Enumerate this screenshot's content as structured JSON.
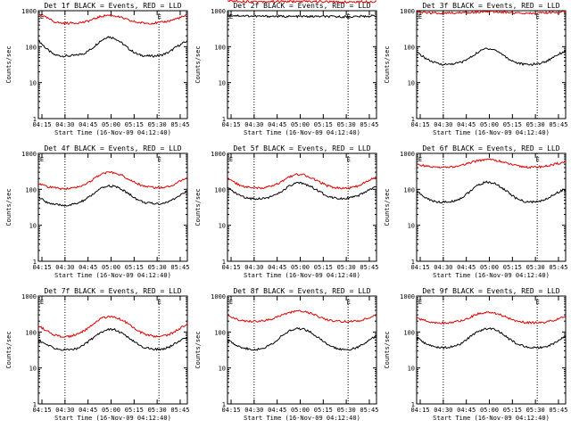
{
  "figure": {
    "xlabel": "Start Time (16-Nov-09 04:12:40)",
    "ylabel": "Counts/sec",
    "x_ticks": [
      "04:15",
      "04:30",
      "04:45",
      "05:00",
      "05:15",
      "05:30",
      "05:45"
    ],
    "y_ticks": [
      "1",
      "10",
      "100",
      "1000"
    ],
    "e_marker": "E",
    "colors": {
      "events": "#000000",
      "lld": "#e00000"
    }
  },
  "chart_data": [
    {
      "type": "line",
      "title": "Det 1f BLACK = Events, RED = LLD",
      "ylabel": "Counts/sec",
      "xlabel": "Start Time (16-Nov-09 04:12:40)",
      "y_scale": "log",
      "ylim": [
        1,
        1000
      ],
      "x_minutes": [
        0,
        5,
        10,
        15,
        20,
        25,
        30,
        35,
        40,
        45,
        50,
        55,
        60,
        65,
        70,
        75,
        80,
        85,
        90,
        95,
        97
      ],
      "series": [
        {
          "name": "Events",
          "color": "#000000",
          "values": [
            150,
            90,
            60,
            55,
            55,
            58,
            65,
            90,
            140,
            190,
            170,
            120,
            80,
            60,
            55,
            55,
            58,
            70,
            100,
            130,
            145
          ]
        },
        {
          "name": "LLD",
          "color": "#e00000",
          "values": [
            800,
            650,
            500,
            450,
            450,
            460,
            480,
            560,
            680,
            750,
            720,
            620,
            520,
            470,
            450,
            450,
            470,
            520,
            600,
            700,
            760
          ]
        }
      ]
    },
    {
      "type": "line",
      "title": "Det 2f BLACK = Events, RED = LLD",
      "ylabel": "Counts/sec",
      "xlabel": "Start Time (16-Nov-09 04:12:40)",
      "y_scale": "log",
      "ylim": [
        1,
        1000
      ],
      "x_minutes": [
        0,
        10,
        20,
        30,
        40,
        50,
        60,
        70,
        80,
        90,
        97
      ],
      "series": [
        {
          "name": "Events",
          "color": "#000000",
          "values": [
            750,
            720,
            700,
            700,
            690,
            690,
            690,
            680,
            680,
            700,
            720
          ]
        },
        {
          "name": "LLD",
          "color": "#e00000",
          "values": [
            1900,
            1800,
            1800,
            1800,
            1800,
            1800,
            1800,
            1750,
            1750,
            1800,
            1800
          ]
        }
      ]
    },
    {
      "type": "line",
      "title": "Det 3f BLACK = Events, RED = LLD",
      "ylabel": "Counts/sec",
      "xlabel": "Start Time (16-Nov-09 04:12:40)",
      "y_scale": "log",
      "ylim": [
        1,
        1000
      ],
      "x_minutes": [
        0,
        5,
        10,
        15,
        20,
        25,
        30,
        35,
        40,
        45,
        50,
        55,
        60,
        65,
        70,
        75,
        80,
        85,
        90,
        95,
        97
      ],
      "series": [
        {
          "name": "Events",
          "color": "#000000",
          "values": [
            70,
            50,
            38,
            33,
            32,
            34,
            38,
            50,
            70,
            90,
            85,
            65,
            45,
            36,
            32,
            32,
            34,
            40,
            55,
            70,
            75
          ]
        },
        {
          "name": "LLD",
          "color": "#e00000",
          "values": [
            900,
            880,
            870,
            860,
            860,
            870,
            880,
            900,
            920,
            940,
            930,
            910,
            890,
            870,
            860,
            860,
            870,
            880,
            900,
            910,
            920
          ]
        }
      ]
    },
    {
      "type": "line",
      "title": "Det 4f BLACK = Events, RED = LLD",
      "ylabel": "Counts/sec",
      "xlabel": "Start Time (16-Nov-09 04:12:40)",
      "y_scale": "log",
      "ylim": [
        1,
        1000
      ],
      "x_minutes": [
        0,
        5,
        10,
        15,
        20,
        25,
        30,
        35,
        40,
        45,
        50,
        55,
        60,
        65,
        70,
        75,
        80,
        85,
        90,
        95,
        97
      ],
      "series": [
        {
          "name": "Events",
          "color": "#000000",
          "values": [
            60,
            45,
            38,
            36,
            36,
            40,
            50,
            70,
            100,
            125,
            120,
            95,
            70,
            50,
            42,
            40,
            40,
            45,
            60,
            80,
            90
          ]
        },
        {
          "name": "LLD",
          "color": "#e00000",
          "values": [
            150,
            120,
            110,
            105,
            105,
            115,
            135,
            180,
            250,
            300,
            290,
            240,
            180,
            140,
            120,
            112,
            112,
            120,
            150,
            190,
            210
          ]
        }
      ]
    },
    {
      "type": "line",
      "title": "Det 5f BLACK = Events, RED = LLD",
      "ylabel": "Counts/sec",
      "xlabel": "Start Time (16-Nov-09 04:12:40)",
      "y_scale": "log",
      "ylim": [
        1,
        1000
      ],
      "x_minutes": [
        0,
        5,
        10,
        15,
        20,
        25,
        30,
        35,
        40,
        45,
        50,
        55,
        60,
        65,
        70,
        75,
        80,
        85,
        90,
        95,
        97
      ],
      "series": [
        {
          "name": "Events",
          "color": "#000000",
          "values": [
            110,
            80,
            62,
            56,
            55,
            58,
            65,
            85,
            120,
            150,
            145,
            115,
            85,
            65,
            58,
            56,
            58,
            65,
            85,
            110,
            120
          ]
        },
        {
          "name": "LLD",
          "color": "#e00000",
          "values": [
            200,
            150,
            120,
            110,
            108,
            112,
            125,
            160,
            220,
            260,
            250,
            205,
            160,
            125,
            112,
            108,
            110,
            125,
            160,
            200,
            220
          ]
        }
      ]
    },
    {
      "type": "line",
      "title": "Det 6f BLACK = Events, RED = LLD",
      "ylabel": "Counts/sec",
      "xlabel": "Start Time (16-Nov-09 04:12:40)",
      "y_scale": "log",
      "ylim": [
        1,
        1000
      ],
      "x_minutes": [
        0,
        5,
        10,
        15,
        20,
        25,
        30,
        35,
        40,
        45,
        50,
        55,
        60,
        65,
        70,
        75,
        80,
        85,
        90,
        95,
        97
      ],
      "series": [
        {
          "name": "Events",
          "color": "#000000",
          "values": [
            90,
            60,
            48,
            44,
            44,
            48,
            60,
            90,
            130,
            160,
            150,
            115,
            80,
            55,
            46,
            44,
            46,
            55,
            75,
            95,
            100
          ]
        },
        {
          "name": "LLD",
          "color": "#e00000",
          "values": [
            500,
            450,
            420,
            410,
            410,
            430,
            470,
            550,
            630,
            680,
            660,
            590,
            510,
            450,
            420,
            410,
            420,
            450,
            500,
            560,
            580
          ]
        }
      ]
    },
    {
      "type": "line",
      "title": "Det 7f BLACK = Events, RED = LLD",
      "ylabel": "Counts/sec",
      "xlabel": "Start Time (16-Nov-09 04:12:40)",
      "y_scale": "log",
      "ylim": [
        1,
        1000
      ],
      "x_minutes": [
        0,
        5,
        10,
        15,
        20,
        25,
        30,
        35,
        40,
        45,
        50,
        55,
        60,
        65,
        70,
        75,
        80,
        85,
        90,
        95,
        97
      ],
      "series": [
        {
          "name": "Events",
          "color": "#000000",
          "values": [
            60,
            45,
            36,
            32,
            32,
            35,
            45,
            65,
            95,
            120,
            115,
            90,
            62,
            45,
            36,
            33,
            33,
            38,
            50,
            65,
            72
          ]
        },
        {
          "name": "LLD",
          "color": "#e00000",
          "values": [
            150,
            110,
            85,
            75,
            75,
            85,
            110,
            160,
            230,
            270,
            260,
            210,
            150,
            105,
            85,
            75,
            75,
            85,
            110,
            150,
            170
          ]
        }
      ]
    },
    {
      "type": "line",
      "title": "Det 8f BLACK = Events, RED = LLD",
      "ylabel": "Counts/sec",
      "xlabel": "Start Time (16-Nov-09 04:12:40)",
      "y_scale": "log",
      "ylim": [
        1,
        1000
      ],
      "x_minutes": [
        0,
        5,
        10,
        15,
        20,
        25,
        30,
        35,
        40,
        45,
        50,
        55,
        60,
        65,
        70,
        75,
        80,
        85,
        90,
        95,
        97
      ],
      "series": [
        {
          "name": "Events",
          "color": "#000000",
          "values": [
            60,
            45,
            36,
            33,
            33,
            38,
            50,
            75,
            105,
            125,
            120,
            95,
            65,
            45,
            36,
            33,
            33,
            38,
            50,
            70,
            78
          ]
        },
        {
          "name": "LLD",
          "color": "#e00000",
          "values": [
            280,
            230,
            205,
            195,
            195,
            210,
            240,
            290,
            350,
            380,
            370,
            320,
            260,
            220,
            200,
            195,
            195,
            205,
            230,
            270,
            290
          ]
        }
      ]
    },
    {
      "type": "line",
      "title": "Det 9f BLACK = Events, RED = LLD",
      "ylabel": "Counts/sec",
      "xlabel": "Start Time (16-Nov-09 04:12:40)",
      "y_scale": "log",
      "ylim": [
        1,
        1000
      ],
      "x_minutes": [
        0,
        5,
        10,
        15,
        20,
        25,
        30,
        35,
        40,
        45,
        50,
        55,
        60,
        65,
        70,
        75,
        80,
        85,
        90,
        95,
        97
      ],
      "series": [
        {
          "name": "Events",
          "color": "#000000",
          "values": [
            70,
            50,
            40,
            37,
            37,
            40,
            50,
            75,
            105,
            125,
            120,
            95,
            65,
            48,
            40,
            37,
            37,
            40,
            50,
            70,
            78
          ]
        },
        {
          "name": "LLD",
          "color": "#e00000",
          "values": [
            250,
            210,
            190,
            180,
            180,
            190,
            215,
            260,
            320,
            350,
            340,
            295,
            240,
            205,
            185,
            180,
            180,
            190,
            215,
            250,
            265
          ]
        }
      ]
    }
  ]
}
